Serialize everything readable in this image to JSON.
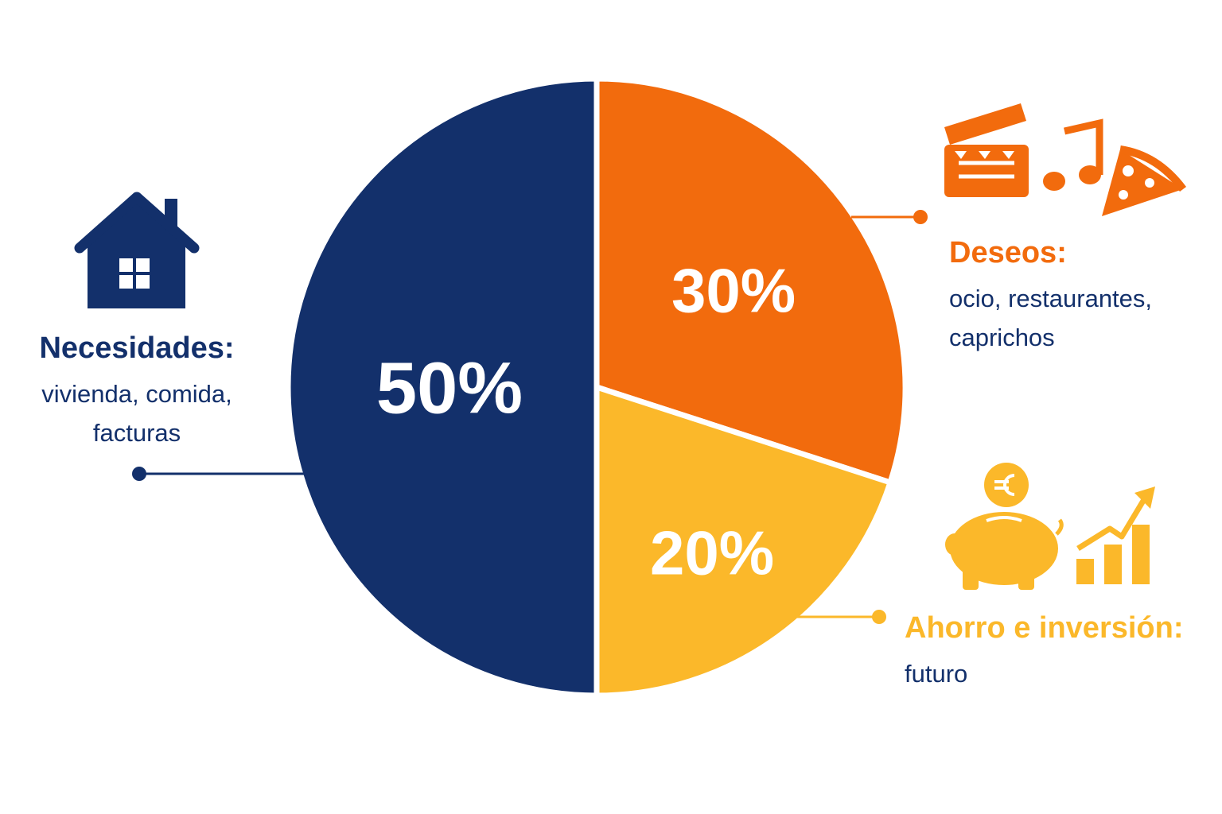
{
  "chart_data": {
    "type": "pie",
    "categories": [
      "Necesidades:",
      "Deseos:",
      "Ahorro e inversión:"
    ],
    "descriptions": [
      [
        "vivienda, comida,",
        "facturas"
      ],
      [
        "ocio, restaurantes,",
        "caprichos"
      ],
      [
        "futuro"
      ]
    ],
    "values": [
      50,
      30,
      20
    ],
    "value_labels": [
      "50%",
      "30%",
      "20%"
    ],
    "colors": [
      "#13306b",
      "#f26b0d",
      "#fbb82a"
    ]
  }
}
